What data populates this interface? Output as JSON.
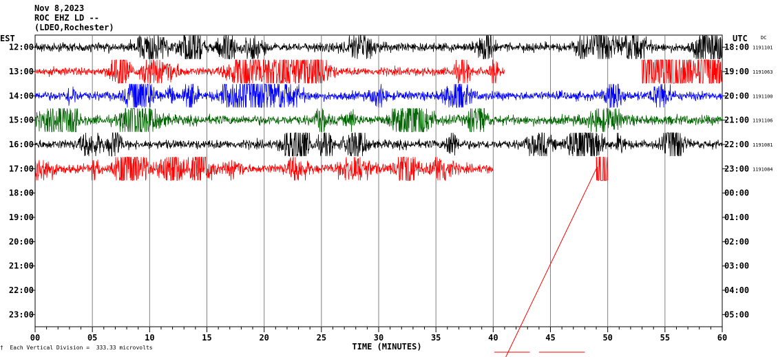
{
  "header": {
    "date": "Nov 8,2023",
    "station": "ROC EHZ LD --",
    "network": "(LDEO,Rochester)"
  },
  "footer": {
    "mark": "†",
    "vertical_division": "Each Vertical Division =  333.33 microvolts"
  },
  "chart_data": {
    "type": "line",
    "title": "",
    "xlabel": "TIME (MINUTES)",
    "ylabel_left": "EST",
    "ylabel_right": "UTC",
    "dc_label": "DC",
    "xlim": [
      0,
      60
    ],
    "x_ticks": [
      "00",
      "05",
      "10",
      "15",
      "20",
      "25",
      "30",
      "35",
      "40",
      "45",
      "50",
      "55",
      "60"
    ],
    "left_hours": [
      "12:00",
      "13:00",
      "14:00",
      "15:00",
      "16:00",
      "17:00",
      "18:00",
      "19:00",
      "20:00",
      "21:00",
      "22:00",
      "23:00"
    ],
    "right_hours": [
      "18:00",
      "19:00",
      "20:00",
      "21:00",
      "22:00",
      "23:00",
      "00:00",
      "01:00",
      "02:00",
      "03:00",
      "04:00",
      "05:00"
    ],
    "colors": [
      "#000000",
      "#ff0000",
      "#0000ff",
      "#006400"
    ],
    "traces": [
      {
        "hour": "12:00",
        "color": "#000000",
        "dc": "1191101",
        "segments": [
          [
            0,
            60
          ]
        ],
        "amp": 1.0
      },
      {
        "hour": "13:00",
        "color": "#ff0000",
        "dc": "1191063",
        "segments": [
          [
            0,
            41
          ],
          [
            53,
            60
          ]
        ],
        "amp": 0.9
      },
      {
        "hour": "14:00",
        "color": "#0000ff",
        "dc": "1191100",
        "segments": [
          [
            0,
            60
          ]
        ],
        "amp": 1.0
      },
      {
        "hour": "15:00",
        "color": "#006400",
        "dc": "1191106",
        "segments": [
          [
            0,
            60
          ]
        ],
        "amp": 1.1
      },
      {
        "hour": "16:00",
        "color": "#000000",
        "dc": "1191081",
        "segments": [
          [
            0,
            60
          ]
        ],
        "amp": 1.0
      },
      {
        "hour": "17:00",
        "color": "#ff0000",
        "dc": "1191084",
        "segments": [
          [
            0,
            40
          ],
          [
            49,
            50
          ]
        ],
        "amp": 1.0
      }
    ]
  }
}
